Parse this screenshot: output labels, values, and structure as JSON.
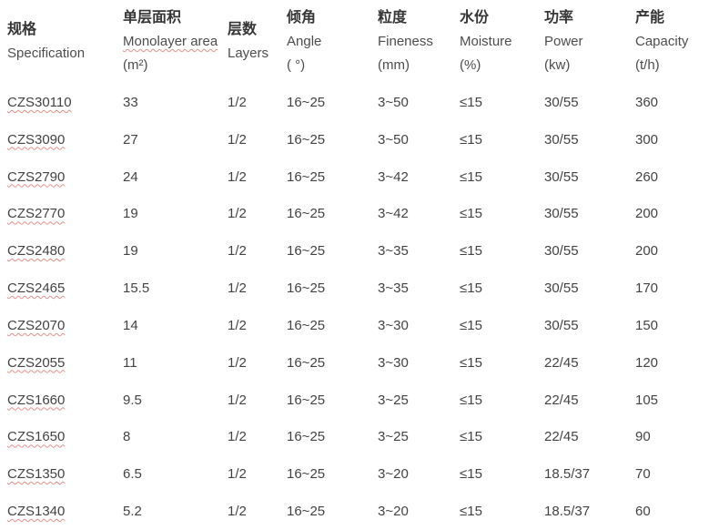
{
  "chart_data": {
    "type": "table",
    "columns": [
      {
        "id": "specification",
        "cn": "规格",
        "en": "Specification",
        "unit": "",
        "spell_underline": false
      },
      {
        "id": "monolayer-area",
        "cn": "单层面积",
        "en": "Monolayer area",
        "unit": "(m²)",
        "spell_underline": true
      },
      {
        "id": "layers",
        "cn": "层数",
        "en": "Layers",
        "unit": "",
        "spell_underline": false
      },
      {
        "id": "angle",
        "cn": "倾角",
        "en": "Angle",
        "unit": "( °)",
        "spell_underline": false
      },
      {
        "id": "fineness",
        "cn": "粒度",
        "en": "Fineness",
        "unit": "(mm)",
        "spell_underline": false
      },
      {
        "id": "moisture",
        "cn": "水份",
        "en": "Moisture",
        "unit": "(%)",
        "spell_underline": false
      },
      {
        "id": "power",
        "cn": "功率",
        "en": "Power",
        "unit": "(kw)",
        "spell_underline": false
      },
      {
        "id": "capacity",
        "cn": "产能",
        "en": "Capacity",
        "unit": "(t/h)",
        "spell_underline": false
      }
    ],
    "rows": [
      [
        "CZS30110",
        "33",
        "1/2",
        "16~25",
        "3~50",
        "≤15",
        "30/55",
        "360"
      ],
      [
        "CZS3090",
        "27",
        "1/2",
        "16~25",
        "3~50",
        "≤15",
        "30/55",
        "300"
      ],
      [
        "CZS2790",
        "24",
        "1/2",
        "16~25",
        "3~42",
        "≤15",
        "30/55",
        "260"
      ],
      [
        "CZS2770",
        "19",
        "1/2",
        "16~25",
        "3~42",
        "≤15",
        "30/55",
        "200"
      ],
      [
        "CZS2480",
        "19",
        "1/2",
        "16~25",
        "3~35",
        "≤15",
        "30/55",
        "200"
      ],
      [
        "CZS2465",
        "15.5",
        "1/2",
        "16~25",
        "3~35",
        "≤15",
        "30/55",
        "170"
      ],
      [
        "CZS2070",
        "14",
        "1/2",
        "16~25",
        "3~30",
        "≤15",
        "30/55",
        "150"
      ],
      [
        "CZS2055",
        "11",
        "1/2",
        "16~25",
        "3~30",
        "≤15",
        "22/45",
        "120"
      ],
      [
        "CZS1660",
        "9.5",
        "1/2",
        "16~25",
        "3~25",
        "≤15",
        "22/45",
        "105"
      ],
      [
        "CZS1650",
        "8",
        "1/2",
        "16~25",
        "3~25",
        "≤15",
        "22/45",
        "90"
      ],
      [
        "CZS1350",
        "6.5",
        "1/2",
        "16~25",
        "3~20",
        "≤15",
        "18.5/37",
        "70"
      ],
      [
        "CZS1340",
        "5.2",
        "1/2",
        "16~25",
        "3~20",
        "≤15",
        "18.5/37",
        "60"
      ]
    ],
    "title": "",
    "layout": {
      "borders": "none",
      "background": "#ffffff"
    }
  },
  "colors": {
    "header_cn_text": "#363636",
    "header_en_text": "#4d4d4d",
    "cell_text": "#434343",
    "spellcheck_underline": "#e6908e",
    "background": "#ffffff"
  }
}
